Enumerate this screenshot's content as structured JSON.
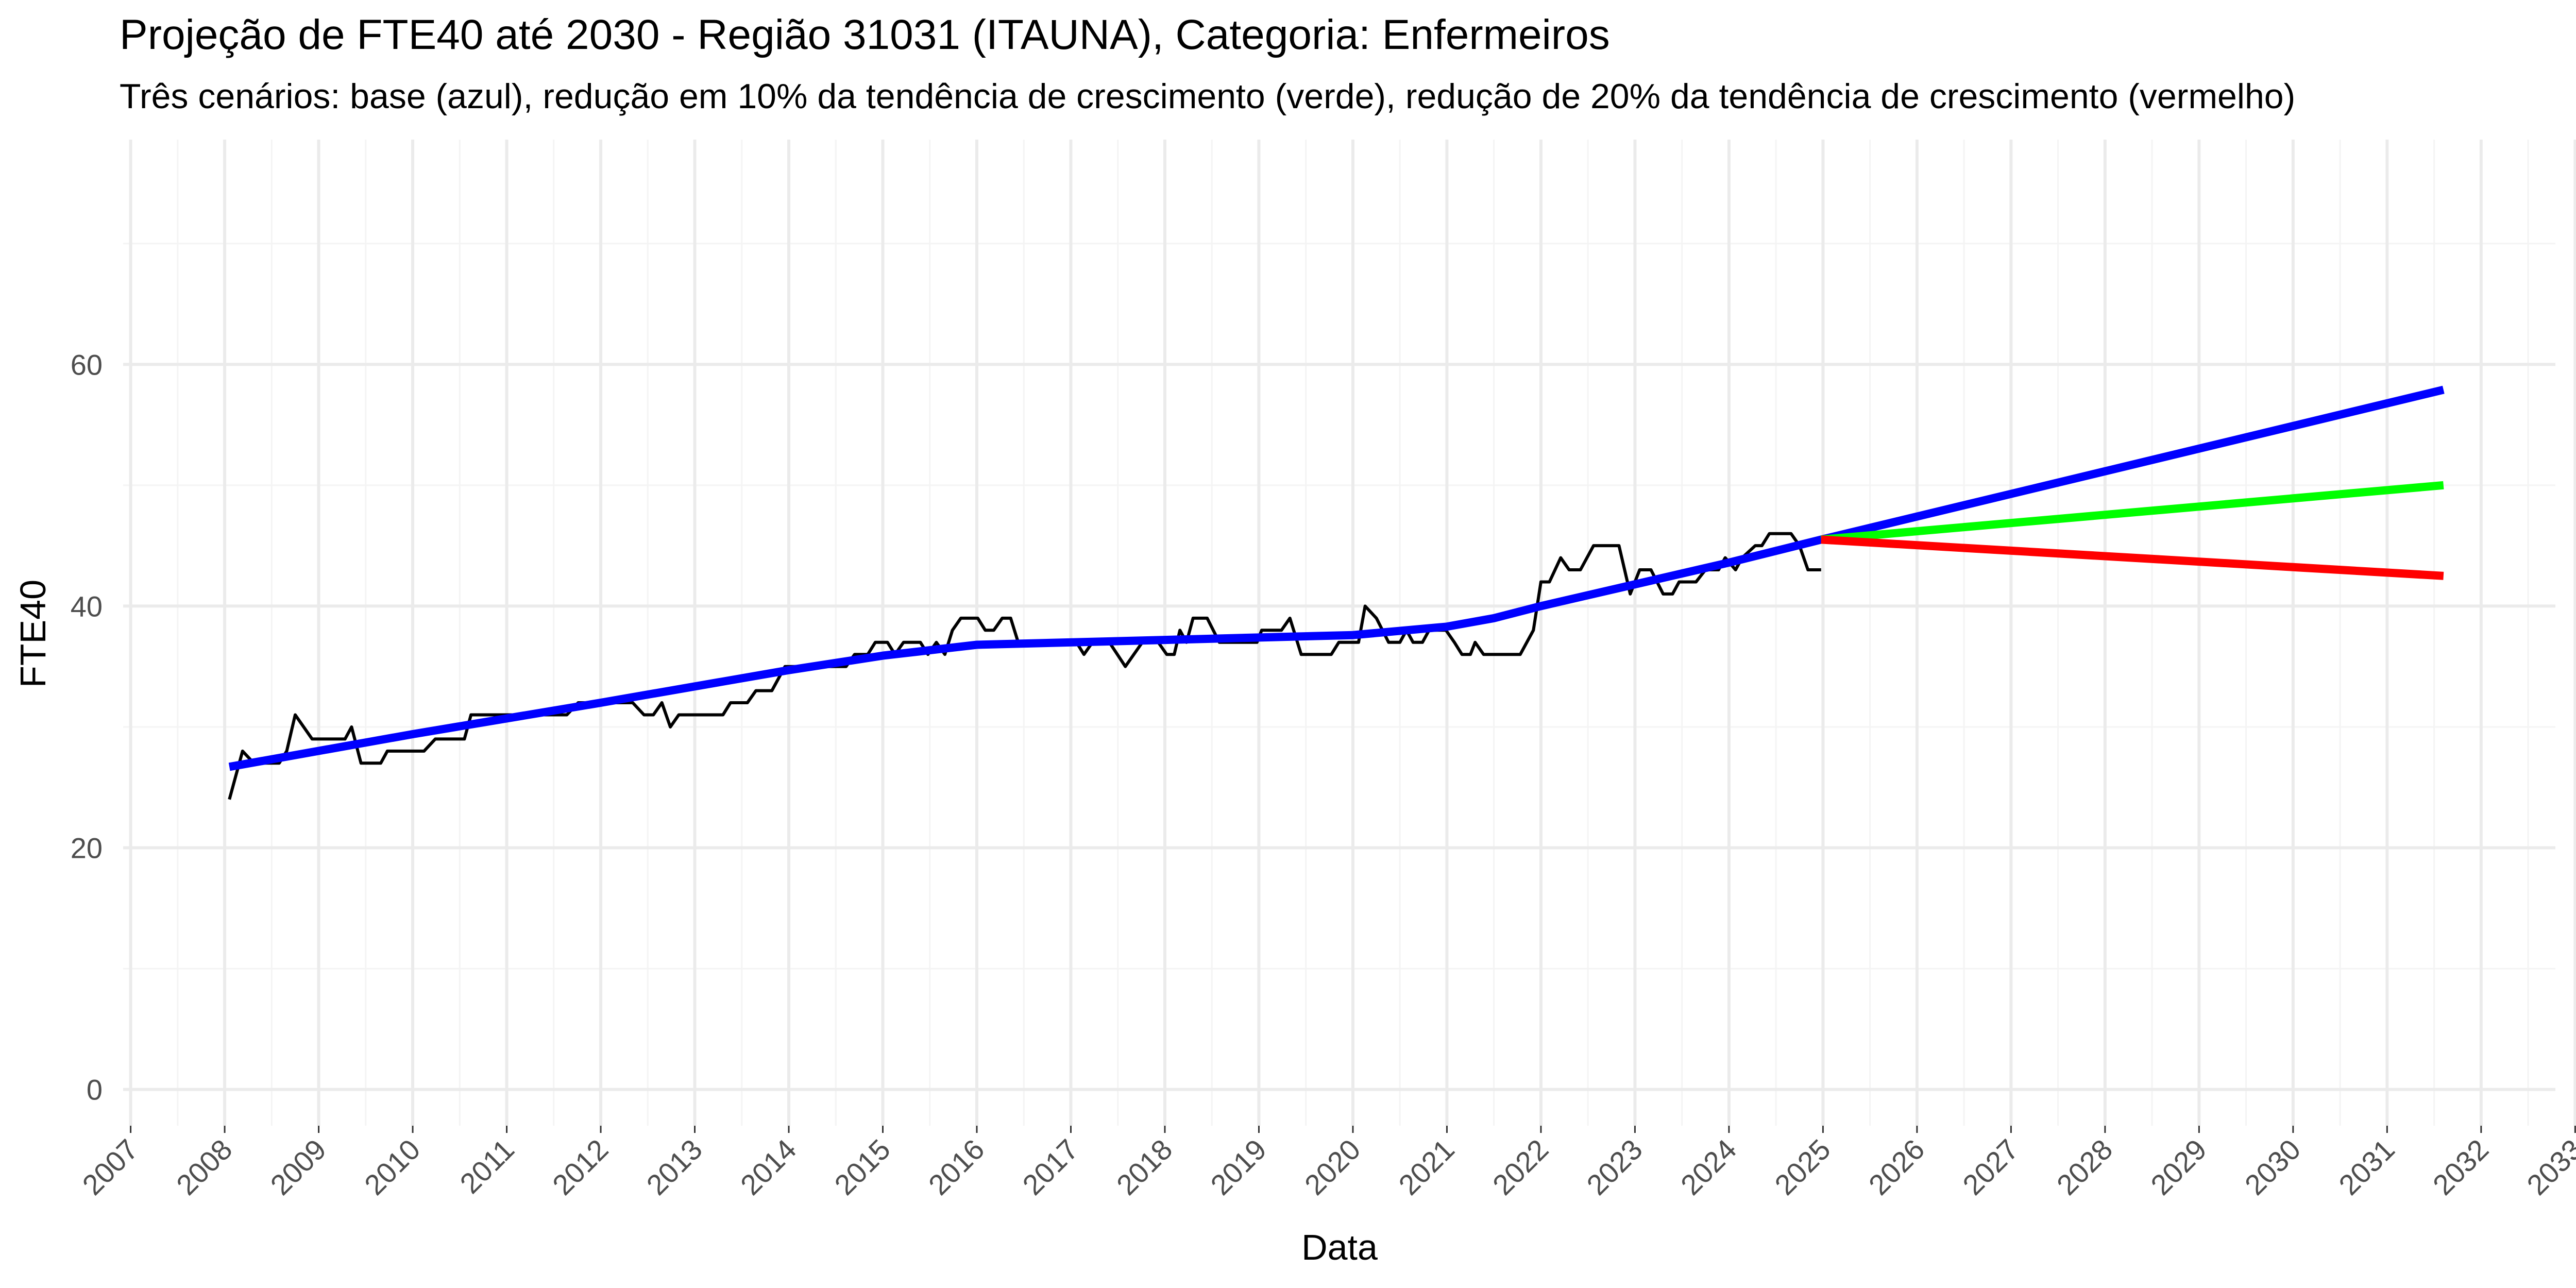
{
  "chart_data": {
    "type": "line",
    "title": "Projeção de FTE40 até 2030 - Região 31031 (ITAUNA), Categoria: Enfermeiros",
    "subtitle": "Três cenários: base (azul), redução em 10% da tendência de crescimento (verde), redução de 20% da tendência de crescimento (vermelho)",
    "x_label": "Data",
    "y_label": "FTE40",
    "xlim": [
      2006.92,
      2032.79
    ],
    "ylim": [
      -3,
      78.6
    ],
    "xticks": [
      2007,
      2008,
      2009,
      2010,
      2011,
      2012,
      2013,
      2014,
      2015,
      2016,
      2017,
      2018,
      2019,
      2020,
      2021,
      2022,
      2023,
      2024,
      2025,
      2026,
      2027,
      2028,
      2029,
      2030,
      2031,
      2032,
      2033
    ],
    "yticks": [
      0,
      20,
      40,
      60
    ],
    "grid": true,
    "series": [
      {
        "color": "#000000",
        "width": "thin",
        "x": [
          2008.05,
          2008.19,
          2008.31,
          2008.58,
          2008.66,
          2008.75,
          2008.93,
          2009.28,
          2009.35,
          2009.45,
          2009.66,
          2009.73,
          2010.12,
          2010.24,
          2010.55,
          2010.62,
          2011.64,
          2011.76,
          2012.34,
          2012.46,
          2012.56,
          2012.65,
          2012.74,
          2012.83,
          2013.3,
          2013.38,
          2013.56,
          2013.65,
          2013.82,
          2013.96,
          2014.61,
          2014.7,
          2014.84,
          2014.92,
          2015.05,
          2015.13,
          2015.22,
          2015.4,
          2015.48,
          2015.57,
          2015.66,
          2015.74,
          2015.83,
          2016.01,
          2016.09,
          2016.18,
          2016.27,
          2016.36,
          2016.44,
          2017.06,
          2017.14,
          2017.23,
          2017.41,
          2017.58,
          2017.76,
          2017.93,
          2018.02,
          2018.1,
          2018.16,
          2018.23,
          2018.3,
          2018.45,
          2018.58,
          2018.98,
          2019.03,
          2019.24,
          2019.33,
          2019.45,
          2019.77,
          2019.85,
          2020.06,
          2020.13,
          2020.25,
          2020.38,
          2020.5,
          2020.57,
          2020.64,
          2020.74,
          2020.81,
          2020.99,
          2021.08,
          2021.16,
          2021.25,
          2021.3,
          2021.39,
          2021.78,
          2021.92,
          2022.0,
          2022.09,
          2022.21,
          2022.3,
          2022.42,
          2022.56,
          2022.83,
          2022.95,
          2023.05,
          2023.17,
          2023.3,
          2023.4,
          2023.47,
          2023.65,
          2023.75,
          2023.89,
          2023.96,
          2024.07,
          2024.14,
          2024.28,
          2024.35,
          2024.43,
          2024.66,
          2024.75,
          2024.84,
          2024.98
        ],
        "values": [
          24,
          28,
          27,
          27,
          28,
          31,
          29,
          29,
          30,
          27,
          27,
          28,
          28,
          29,
          29,
          31,
          31,
          32,
          32,
          31,
          31,
          32,
          30,
          31,
          31,
          32,
          32,
          33,
          33,
          35,
          35,
          36,
          36,
          37,
          37,
          36,
          37,
          37,
          36,
          37,
          36,
          38,
          39,
          39,
          38,
          38,
          39,
          39,
          37,
          37,
          36,
          37,
          37,
          35,
          37,
          37,
          36,
          36,
          38,
          37,
          39,
          39,
          37,
          37,
          38,
          38,
          39,
          36,
          36,
          37,
          37,
          40,
          39,
          37,
          37,
          38,
          37,
          37,
          38,
          38,
          37,
          36,
          36,
          37,
          36,
          36,
          38,
          42,
          42,
          44,
          43,
          43,
          45,
          45,
          41,
          43,
          43,
          41,
          41,
          42,
          42,
          43,
          43,
          44,
          43,
          44,
          45,
          45,
          46,
          46,
          45,
          43,
          43
        ]
      },
      {
        "color": "#0000ff",
        "width": "thick",
        "x": [
          2008.05,
          2010,
          2012,
          2014,
          2015,
          2016,
          2018,
          2020,
          2021,
          2021.5,
          2022,
          2023,
          2024,
          2024.98,
          2031.6
        ],
        "values": [
          26.7,
          29.4,
          32,
          34.7,
          35.9,
          36.8,
          37.2,
          37.6,
          38.3,
          39,
          40,
          41.8,
          43.6,
          45.5,
          57.9
        ]
      },
      {
        "color": "#00ff00",
        "width": "thick",
        "x": [
          2024.98,
          2031.6
        ],
        "values": [
          45.5,
          50
        ]
      },
      {
        "color": "#ff0000",
        "width": "thick",
        "x": [
          2024.98,
          2031.6
        ],
        "values": [
          45.5,
          42.5
        ]
      }
    ]
  }
}
